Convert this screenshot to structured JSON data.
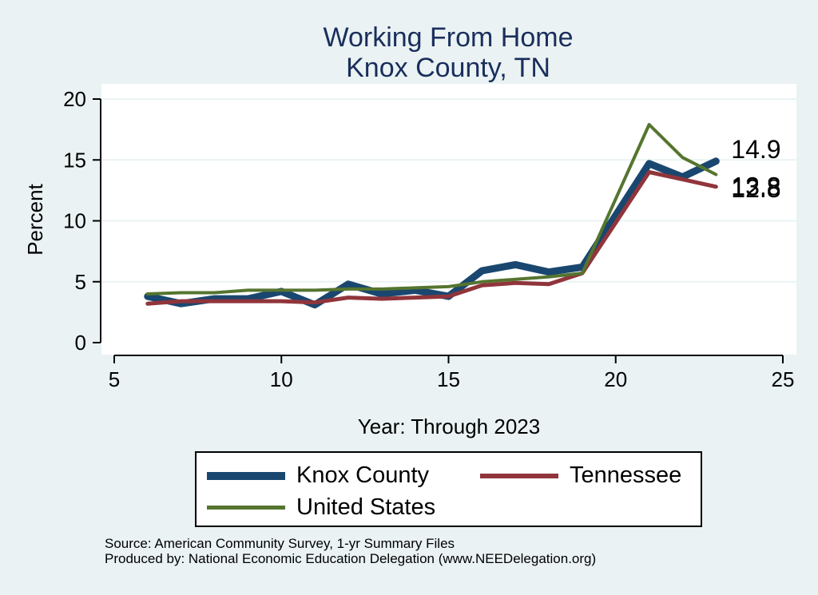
{
  "title_line1": "Working From Home",
  "title_line2": "Knox County, TN",
  "notes": {
    "source": "Source: American Community Survey, 1-yr Summary Files",
    "produced": "Produced by: National Economic Education Delegation (www.NEEDelegation.org)"
  },
  "chart_data": {
    "type": "line",
    "title": "Working From Home\nKnox County, TN",
    "xlabel": "Year: Through 2023",
    "ylabel": "Percent",
    "xlim": [
      5,
      25
    ],
    "ylim": [
      0,
      20
    ],
    "xticks": [
      5,
      10,
      15,
      20,
      25
    ],
    "yticks": [
      0,
      5,
      10,
      15,
      20
    ],
    "grid": true,
    "legend_position": "bottom",
    "x": [
      6,
      7,
      8,
      9,
      10,
      11,
      12,
      13,
      14,
      15,
      16,
      17,
      18,
      19,
      21,
      22,
      23
    ],
    "series": [
      {
        "name": "Knox County",
        "color": "#1a476f",
        "values": [
          3.8,
          3.2,
          3.6,
          3.6,
          4.2,
          3.1,
          4.8,
          4.0,
          4.3,
          3.8,
          5.9,
          6.4,
          5.8,
          6.2,
          14.7,
          13.6,
          14.9
        ],
        "end_label": "14.9"
      },
      {
        "name": "Tennessee",
        "color": "#90353b",
        "values": [
          3.2,
          3.4,
          3.4,
          3.4,
          3.4,
          3.3,
          3.7,
          3.6,
          3.7,
          3.8,
          4.7,
          4.9,
          4.8,
          5.7,
          14.0,
          13.4,
          12.8
        ],
        "end_label": "12.8"
      },
      {
        "name": "United States",
        "color": "#55752f",
        "values": [
          4.0,
          4.1,
          4.1,
          4.3,
          4.3,
          4.3,
          4.4,
          4.4,
          4.5,
          4.6,
          5.0,
          5.2,
          5.4,
          5.7,
          17.9,
          15.2,
          13.8
        ],
        "end_label": "13.8"
      }
    ]
  }
}
